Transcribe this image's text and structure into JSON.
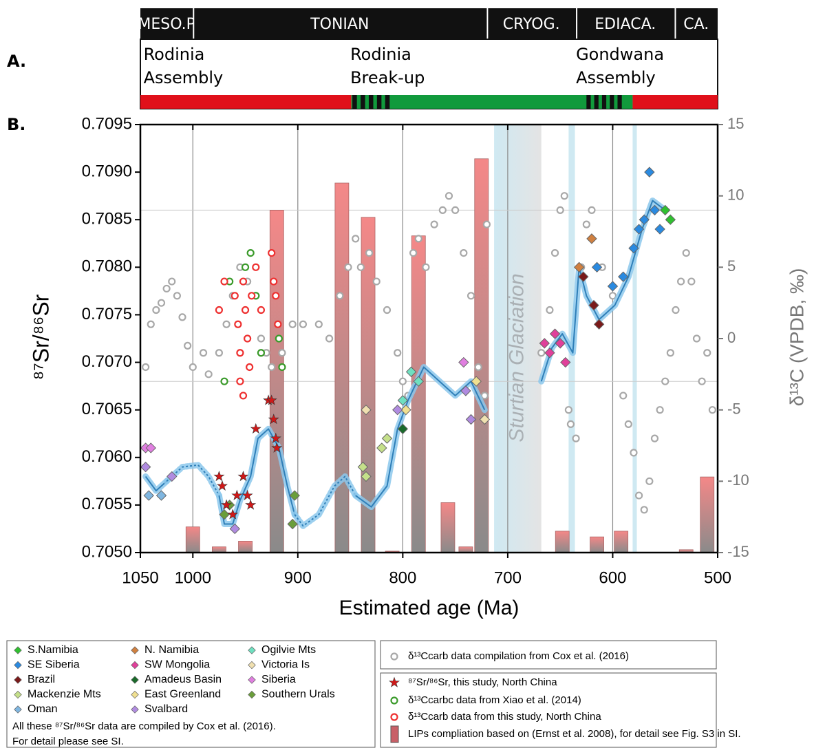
{
  "panel_labels": [
    "A.",
    "B."
  ],
  "periods": [
    {
      "label": "MESO.P",
      "range": [
        1050,
        1000
      ]
    },
    {
      "label": "TONIAN",
      "range": [
        1000,
        720
      ]
    },
    {
      "label": "CRYOG.",
      "range": [
        720,
        635
      ]
    },
    {
      "label": "EDIACA.",
      "range": [
        635,
        541
      ]
    },
    {
      "label": "CA.",
      "range": [
        541,
        500
      ]
    }
  ],
  "events": [
    {
      "lines": [
        "Rodinia",
        "Assembly"
      ],
      "age": 1047
    },
    {
      "lines": [
        "Rodinia",
        "Break-up"
      ],
      "age": 850
    },
    {
      "lines": [
        "Gondwana",
        "Assembly"
      ],
      "age": 635
    }
  ],
  "tectonic_bar": [
    {
      "range": [
        1050,
        849
      ],
      "color": "#e0101a"
    },
    {
      "range": [
        849,
        581
      ],
      "color": "#119a3c"
    },
    {
      "range": [
        581,
        500
      ],
      "color": "#e0101a"
    }
  ],
  "tectonic_dashes": [
    [
      848,
      809
    ],
    [
      625,
      588
    ]
  ],
  "chart_data": {
    "type": "scatter",
    "xlabel": "Estimated age (Ma)",
    "ylabel": "⁸⁷Sr/⁸⁶Sr",
    "y2label": "δ¹³C (VPDB, ‰)",
    "xlim": [
      1050,
      500
    ],
    "xticks": [
      1050,
      1000,
      900,
      800,
      700,
      600,
      500
    ],
    "xgrid": [
      1000,
      900,
      800,
      700,
      600
    ],
    "ylim": [
      0.705,
      0.7095
    ],
    "yticks": [
      {
        "value": 0.705,
        "label": "0.7050"
      },
      0.7055,
      {
        "value": 0.706,
        "label": "0.7060"
      },
      0.7065,
      {
        "value": 0.707,
        "label": "0.7070"
      },
      0.7075,
      {
        "value": 0.708,
        "label": "0.7080"
      },
      0.7085,
      {
        "value": 0.709,
        "label": "0.7090"
      },
      0.7095
    ],
    "y2lim": [
      -15,
      15
    ],
    "y2ticks": [
      15,
      10,
      5,
      0,
      -5,
      -10,
      -15
    ],
    "hlines": [
      0.7086,
      0.7068
    ],
    "glaciation": {
      "label": "Sturtian Glaciation",
      "range": [
        713,
        668
      ]
    },
    "glacial_bands": [
      [
        642,
        636
      ],
      [
        581,
        577
      ]
    ],
    "curves": [
      {
        "style": "solid",
        "x": [
          1045,
          1035,
          1025
        ],
        "values": [
          0.7058,
          0.70565,
          0.70575
        ]
      },
      {
        "style": "dashed",
        "x": [
          1025,
          1010,
          995,
          985,
          975
        ],
        "values": [
          0.70575,
          0.7059,
          0.70592,
          0.7058,
          0.7056
        ]
      },
      {
        "style": "solid",
        "x": [
          975,
          970,
          962,
          955,
          945,
          938,
          928,
          918,
          910,
          903
        ],
        "values": [
          0.7056,
          0.7053,
          0.7053,
          0.70555,
          0.7058,
          0.7062,
          0.7063,
          0.7061,
          0.7057,
          0.7054
        ]
      },
      {
        "style": "dashed",
        "x": [
          903,
          895,
          880,
          865,
          855,
          845
        ],
        "values": [
          0.7054,
          0.70528,
          0.7054,
          0.7057,
          0.7058,
          0.7056
        ]
      },
      {
        "style": "solid",
        "x": [
          845,
          830,
          815,
          805,
          795,
          780,
          765,
          750,
          735,
          722
        ],
        "values": [
          0.7056,
          0.70548,
          0.7057,
          0.7063,
          0.7066,
          0.70695,
          0.7068,
          0.70665,
          0.7068,
          0.7065
        ]
      },
      {
        "style": "solid",
        "x": [
          668,
          658,
          648,
          638,
          632,
          625,
          613,
          598,
          585,
          572,
          562,
          550
        ],
        "values": [
          0.7068,
          0.70715,
          0.7073,
          0.7071,
          0.708,
          0.7077,
          0.70745,
          0.7076,
          0.7079,
          0.7084,
          0.7087,
          0.7086
        ]
      }
    ],
    "series": [
      {
        "name": "S.Namibia",
        "marker": "diamond",
        "color": "#30c030",
        "x": [
          550,
          545
        ],
        "values": [
          0.7086,
          0.7085
        ]
      },
      {
        "name": "SE Siberia",
        "marker": "diamond",
        "color": "#2a8ae0",
        "x": [
          615,
          600,
          590,
          580,
          575,
          570,
          565,
          560,
          555
        ],
        "values": [
          0.708,
          0.7078,
          0.7079,
          0.7082,
          0.7084,
          0.7085,
          0.709,
          0.7086,
          0.7084
        ]
      },
      {
        "name": "Brazil",
        "marker": "diamond",
        "color": "#7a1a1a",
        "x": [
          628,
          618,
          613
        ],
        "values": [
          0.7079,
          0.7076,
          0.7074
        ]
      },
      {
        "name": "Mackenzie Mts",
        "marker": "diamond",
        "color": "#c5e08a",
        "x": [
          838,
          835,
          820,
          815
        ],
        "values": [
          0.7059,
          0.7058,
          0.7061,
          0.7062
        ]
      },
      {
        "name": "Oman",
        "marker": "diamond",
        "color": "#7fb6e0",
        "x": [
          1042,
          1030
        ],
        "values": [
          0.7056,
          0.7056
        ]
      },
      {
        "name": "N. Namibia",
        "marker": "diamond",
        "color": "#d08040",
        "x": [
          632,
          620
        ],
        "values": [
          0.708,
          0.7083
        ]
      },
      {
        "name": "SW Mongolia",
        "marker": "diamond",
        "color": "#e0409a",
        "x": [
          665,
          660,
          655,
          650,
          645
        ],
        "values": [
          0.7072,
          0.7071,
          0.7073,
          0.7072,
          0.707
        ]
      },
      {
        "name": "Amadeus Basin",
        "marker": "diamond",
        "color": "#1a6a2a",
        "x": [
          800
        ],
        "values": [
          0.7063
        ]
      },
      {
        "name": "East Greenland",
        "marker": "diamond",
        "color": "#f0e090",
        "x": [
          797,
          730
        ],
        "values": [
          0.7065,
          0.7068
        ]
      },
      {
        "name": "Svalbard",
        "marker": "diamond",
        "color": "#b08be0",
        "x": [
          1045,
          1020,
          960,
          805,
          740,
          735
        ],
        "values": [
          0.7059,
          0.7058,
          0.70525,
          0.7065,
          0.7067,
          0.7064
        ]
      },
      {
        "name": "Ogilvie Mts",
        "marker": "diamond",
        "color": "#6fe0c0",
        "x": [
          800,
          792,
          785
        ],
        "values": [
          0.7066,
          0.7069,
          0.7068
        ]
      },
      {
        "name": "Victoria Is",
        "marker": "diamond",
        "color": "#f0e0b0",
        "x": [
          835,
          722
        ],
        "values": [
          0.7065,
          0.7064
        ]
      },
      {
        "name": "Siberia",
        "marker": "diamond",
        "color": "#e07fe0",
        "x": [
          1045,
          1040,
          742
        ],
        "values": [
          0.7061,
          0.7061,
          0.707
        ]
      },
      {
        "name": "Southern Urals",
        "marker": "diamond",
        "color": "#6a9e3a",
        "x": [
          970,
          965,
          905,
          903
        ],
        "values": [
          0.7054,
          0.7055,
          0.7053,
          0.7056
        ]
      },
      {
        "name": "δ¹³Ccarb data compilation from Cox et al. (2016)",
        "marker": "circle",
        "axis": "y2",
        "color": "#a8a8a8",
        "x": [
          1045,
          1040,
          1035,
          1030,
          1025,
          1020,
          1015,
          1010,
          1005,
          1000,
          990,
          985,
          975,
          968,
          962,
          955,
          948,
          940,
          935,
          930,
          925,
          915,
          905,
          895,
          880,
          870,
          860,
          852,
          845,
          840,
          832,
          825,
          815,
          805,
          800,
          795,
          790,
          785,
          778,
          770,
          762,
          756,
          750,
          742,
          735,
          728,
          722,
          720,
          668,
          660,
          655,
          650,
          646,
          642,
          640,
          635,
          630,
          625,
          620,
          610,
          600,
          590,
          585,
          580,
          575,
          570,
          565,
          560,
          555,
          550,
          545,
          540,
          535,
          530,
          525,
          520,
          515,
          510,
          505
        ],
        "values": [
          -2,
          1,
          2,
          2.5,
          3.5,
          4,
          3,
          1.5,
          -0.5,
          -2,
          -1,
          -2.5,
          -1,
          1,
          3,
          5,
          4,
          3,
          0,
          -1,
          -2,
          -1,
          1,
          1,
          1,
          0,
          3,
          5,
          7,
          5,
          6,
          4,
          2,
          -1,
          -3,
          -4,
          6,
          7,
          5,
          8,
          9,
          10,
          9,
          6,
          3,
          -2,
          -4,
          8,
          -1,
          2,
          6,
          9,
          10,
          -5,
          -6,
          -7,
          5,
          8,
          9,
          5,
          3,
          -4,
          -6,
          -8,
          -11,
          -12,
          -10,
          -7,
          -5,
          -3,
          -1,
          2,
          4,
          6,
          4,
          0,
          -3,
          -1,
          -5
        ]
      },
      {
        "name": "⁸⁷Sr/⁸⁶Sr, this study, North China",
        "marker": "star",
        "color": "#d01818",
        "x": [
          975,
          972,
          968,
          962,
          958,
          952,
          948,
          945,
          940,
          928,
          925,
          923,
          921,
          920
        ],
        "values": [
          0.7058,
          0.7057,
          0.7055,
          0.7054,
          0.7056,
          0.7058,
          0.7056,
          0.7055,
          0.7063,
          0.7066,
          0.7066,
          0.7064,
          0.7062,
          0.7061
        ]
      },
      {
        "name": "δ¹³Ccarbc data from Xiao et al. (2014)",
        "marker": "circle",
        "axis": "y2",
        "color": "#3a9a2a",
        "x": [
          965,
          950,
          945,
          940,
          935,
          918,
          915,
          970
        ],
        "values": [
          4,
          5,
          6,
          3,
          -1,
          0,
          -2,
          -3
        ]
      },
      {
        "name": "δ¹³Ccarb data from this study, North China",
        "marker": "circle",
        "axis": "y2",
        "color": "#ee3030",
        "x": [
          960,
          957,
          955,
          952,
          950,
          948,
          946,
          944,
          940,
          935,
          925,
          923,
          921,
          919,
          955,
          952,
          970,
          975
        ],
        "values": [
          3,
          1,
          -1,
          4,
          2,
          0,
          -2,
          3,
          5,
          2,
          6,
          4,
          3,
          1,
          -3,
          -4,
          4,
          2
        ]
      },
      {
        "name": "LIPs compliation based on (Ernst et al. 2008),  for detail see  Fig. S3 in SI.",
        "marker": "bar",
        "axis": "y2",
        "color": "#f48888",
        "x": [
          1000,
          975,
          950,
          920,
          858,
          833,
          810,
          785,
          757,
          740,
          725,
          648,
          615,
          592,
          530,
          510
        ],
        "values": [
          -13.2,
          -14.6,
          -14.2,
          9.0,
          10.9,
          8.5,
          -14.9,
          7.2,
          -11.5,
          -14.6,
          12.6,
          -13.5,
          -13.9,
          -13.5,
          -14.8,
          -9.7
        ]
      }
    ],
    "notes": [
      "All these ⁸⁷Sr/⁸⁶Sr data are compiled by Cox et al. (2016).",
      "For detail please see SI."
    ]
  }
}
